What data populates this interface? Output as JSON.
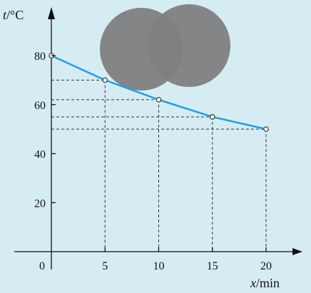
{
  "chart_data": {
    "type": "line",
    "x": [
      0,
      5,
      10,
      15,
      20
    ],
    "y": [
      80,
      70,
      62,
      55,
      50
    ],
    "xlabel_var": "x",
    "xlabel_unit": "/min",
    "ylabel_var": "t",
    "ylabel_unit": "/°C",
    "x_ticks": [
      "0",
      "5",
      "10",
      "15",
      "20"
    ],
    "y_ticks": [
      "20",
      "40",
      "60",
      "80"
    ],
    "xlim": [
      0,
      20
    ],
    "ylim": [
      0,
      80
    ],
    "grid": false,
    "line_color": "#1ea0e6",
    "background_color": "#d6ecf3",
    "guides": true
  }
}
